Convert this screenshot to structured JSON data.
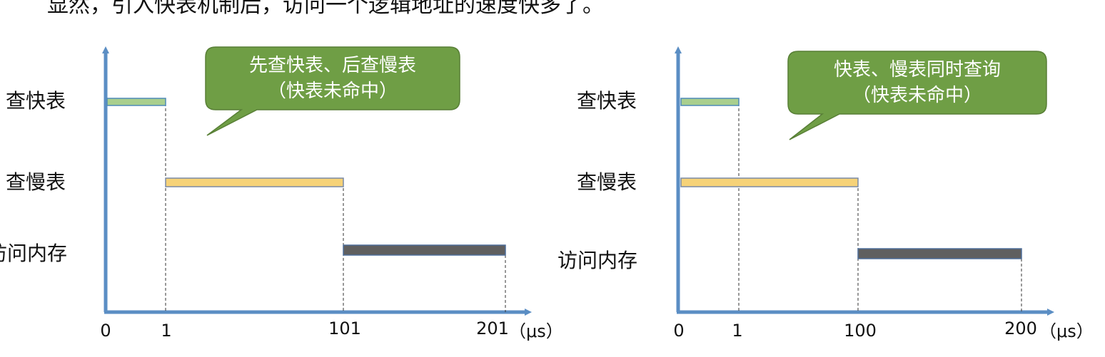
{
  "top_text": "显然，引入快表机制后，访问一个逻辑地址的速度快多了。",
  "colors": {
    "axis": "#5b8ec4",
    "fast_bar": "#a9cf8e",
    "slow_bar": "#f6d278",
    "mem_bar": "#5f5f5f",
    "callout_fill": "#6f9e45",
    "callout_text": "#ffffff"
  },
  "chart_data": [
    {
      "type": "gantt",
      "categories": [
        "查快表",
        "查慢表",
        "访问内存"
      ],
      "tasks": [
        {
          "label": "查快表",
          "start": 0,
          "end": 1
        },
        {
          "label": "查慢表",
          "start": 1,
          "end": 101
        },
        {
          "label": "访问内存",
          "start": 101,
          "end": 201
        }
      ],
      "tick_labels": [
        "0",
        "1",
        "101",
        "201"
      ],
      "unit": "（μs）",
      "callout": {
        "line1": "先查快表、后查慢表",
        "line2": "（快表未命中）"
      }
    },
    {
      "type": "gantt",
      "categories": [
        "查快表",
        "查慢表",
        "访问内存"
      ],
      "tasks": [
        {
          "label": "查快表",
          "start": 0,
          "end": 1
        },
        {
          "label": "查慢表",
          "start": 0,
          "end": 100
        },
        {
          "label": "访问内存",
          "start": 100,
          "end": 200
        }
      ],
      "tick_labels": [
        "0",
        "1",
        "100",
        "200"
      ],
      "unit": "（μs）",
      "callout": {
        "line1": "快表、慢表同时查询",
        "line2": "（快表未命中）"
      }
    }
  ]
}
